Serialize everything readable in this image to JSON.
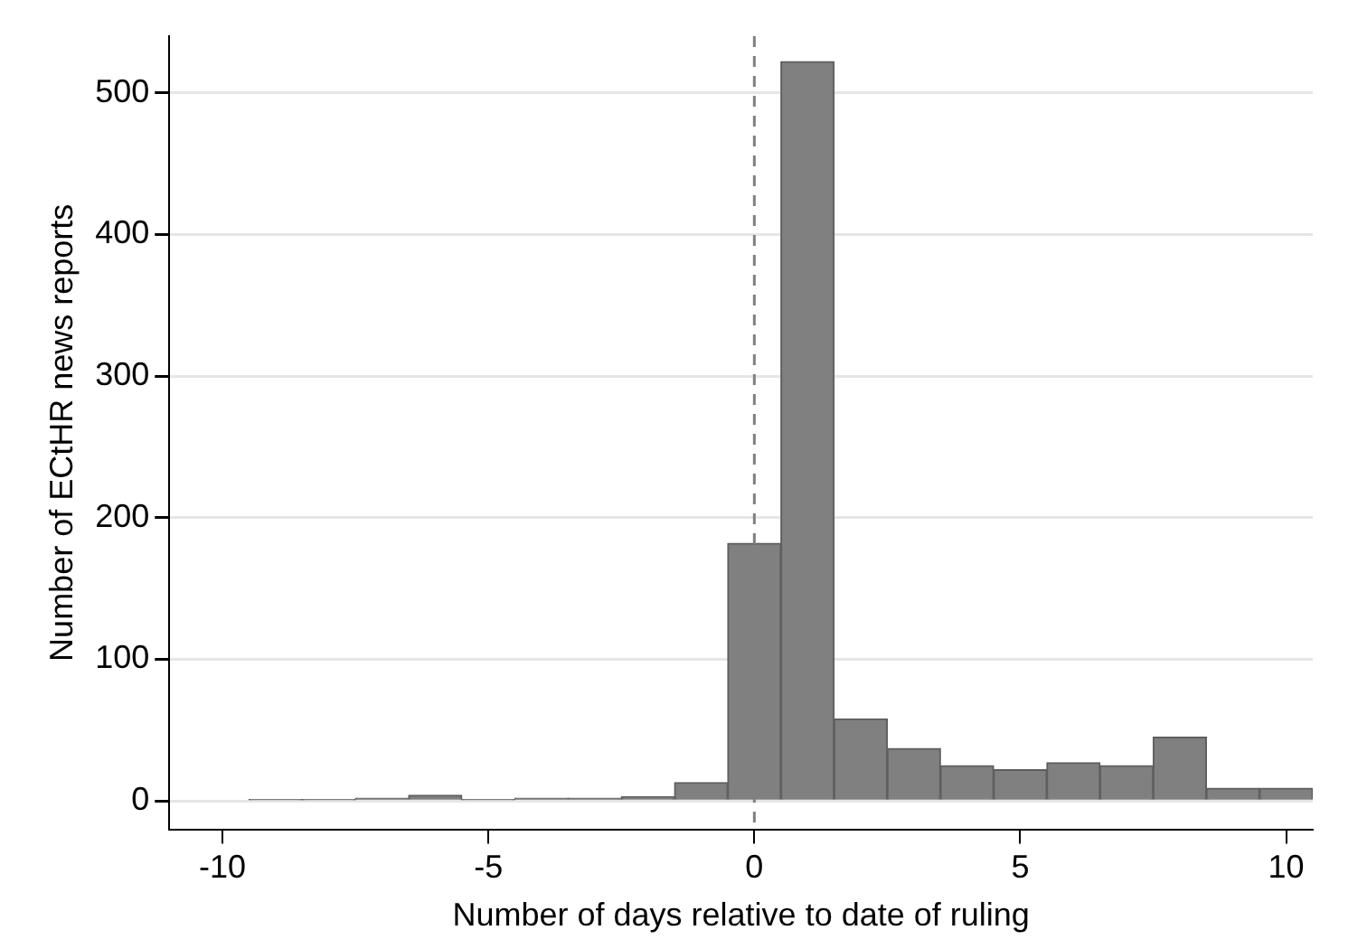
{
  "chart_data": {
    "type": "histogram",
    "xlabel": "Number of days relative to date of ruling",
    "ylabel": "Number of ECtHR news reports",
    "bins": [
      -9.5,
      -8.5,
      -7.5,
      -6.5,
      -5.5,
      -4.5,
      -3.5,
      -2.5,
      -1.5,
      -0.5,
      0.5,
      1.5,
      2.5,
      3.5,
      4.5,
      5.5,
      6.5,
      7.5,
      8.5,
      9.5,
      10.5
    ],
    "values": [
      1,
      1,
      2,
      4,
      1,
      2,
      2,
      3,
      13,
      182,
      522,
      58,
      37,
      25,
      22,
      27,
      25,
      45,
      9,
      9
    ],
    "color": "#808080",
    "xlim": [
      -11,
      10.5
    ],
    "xticks": [
      -10,
      -5,
      0,
      5,
      10
    ],
    "ylim": [
      -20,
      540
    ],
    "yticks": [
      0,
      100,
      200,
      300,
      400,
      500
    ],
    "grid": "y",
    "legend": false,
    "ref_lines": [
      {
        "axis": "x",
        "value": 0,
        "color": "#808080",
        "line_style": "dashed"
      }
    ]
  }
}
